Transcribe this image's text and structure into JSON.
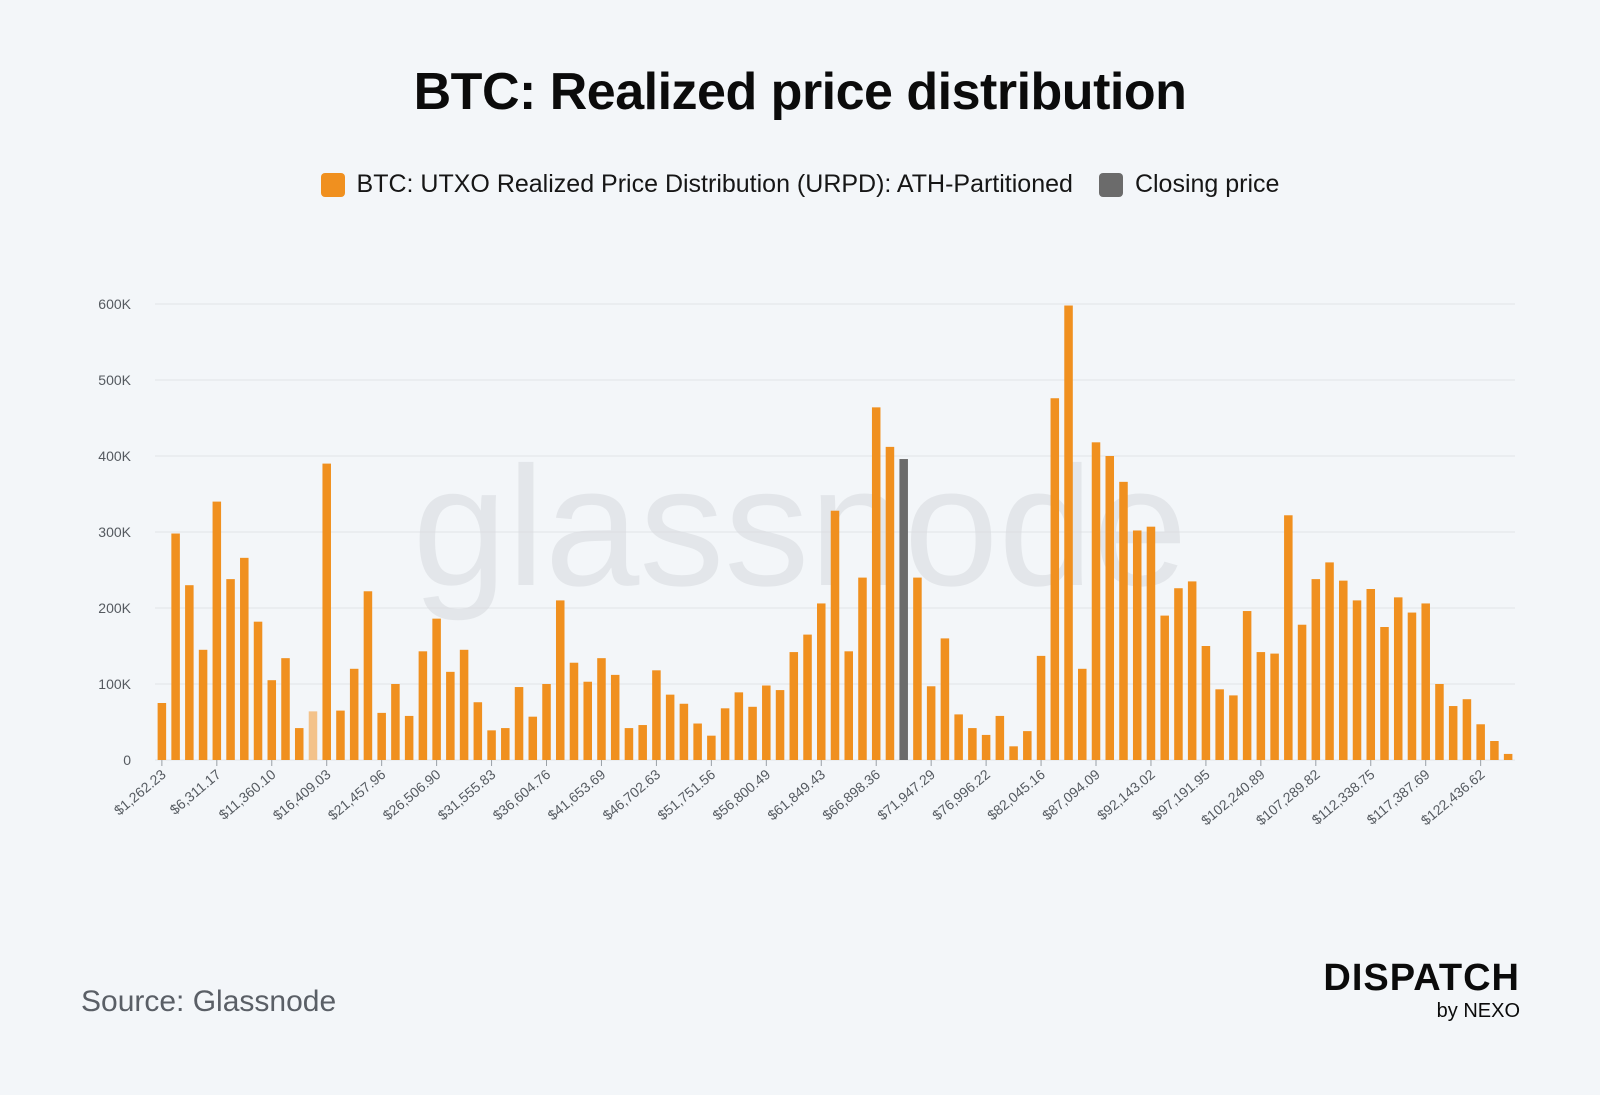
{
  "header": {
    "title": "BTC: Realized price distribution"
  },
  "legend": [
    {
      "label": "BTC: UTXO Realized Price Distribution (URPD): ATH-Partitioned",
      "color": "#f0901f"
    },
    {
      "label": "Closing price",
      "color": "#6b6b6b"
    }
  ],
  "watermark": "glassnode",
  "footer": {
    "source": "Source: Glassnode",
    "brand": "DISPATCH",
    "brand_sub": "by NEXO"
  },
  "chart_data": {
    "type": "bar",
    "title": "BTC: Realized price distribution",
    "xlabel": "",
    "ylabel": "",
    "ylim": [
      0,
      600000
    ],
    "yticks": [
      0,
      100000,
      200000,
      300000,
      400000,
      500000,
      600000
    ],
    "ytick_labels": [
      "0",
      "100K",
      "200K",
      "300K",
      "400K",
      "500K",
      "600K"
    ],
    "xtick_labels": [
      "$1,262.23",
      "$6,311.17",
      "$11,360.10",
      "$16,409.03",
      "$21,457.96",
      "$26,506.90",
      "$31,555.83",
      "$36,604.76",
      "$41,653.69",
      "$46,702.63",
      "$51,751.56",
      "$56,800.49",
      "$61,849.43",
      "$66,898.36",
      "$71,947.29",
      "$76,996.22",
      "$82,045.16",
      "$87,094.09",
      "$92,143.02",
      "$97,191.95",
      "$102,240.89",
      "$107,289.82",
      "$112,338.75",
      "$117,387.69",
      "$122,436.62"
    ],
    "xtick_every": 4,
    "grid": true,
    "legend_position": "top",
    "colors": {
      "default": "#f0901f",
      "closing": "#6b6b6b",
      "faded": "#f3c28a"
    },
    "closing_index": 54,
    "faded_index": 11,
    "values": [
      75000,
      298000,
      230000,
      145000,
      340000,
      238000,
      266000,
      182000,
      105000,
      134000,
      42000,
      64000,
      390000,
      65000,
      120000,
      222000,
      62000,
      100000,
      58000,
      143000,
      186000,
      116000,
      145000,
      76000,
      39000,
      42000,
      96000,
      57000,
      100000,
      210000,
      128000,
      103000,
      134000,
      112000,
      42000,
      46000,
      118000,
      86000,
      74000,
      48000,
      32000,
      68000,
      89000,
      70000,
      98000,
      92000,
      142000,
      165000,
      206000,
      328000,
      143000,
      240000,
      464000,
      412000,
      396000,
      240000,
      97000,
      160000,
      60000,
      42000,
      33000,
      58000,
      18000,
      38000,
      137000,
      476000,
      598000,
      120000,
      418000,
      400000,
      366000,
      302000,
      307000,
      190000,
      226000,
      235000,
      150000,
      93000,
      85000,
      196000,
      142000,
      140000,
      322000,
      178000,
      238000,
      260000,
      236000,
      210000,
      225000,
      175000,
      214000,
      194000,
      206000,
      100000,
      71000,
      80000,
      47000,
      25000,
      8000
    ]
  }
}
